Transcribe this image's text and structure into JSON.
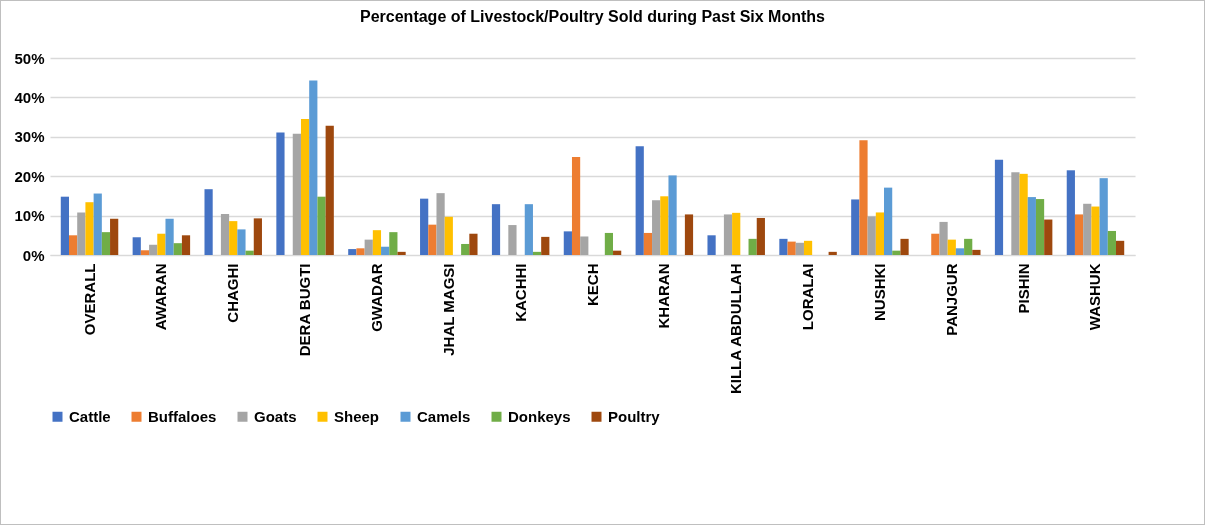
{
  "chart_data": {
    "type": "bar",
    "title": "Percentage of Livestock/Poultry Sold during Past Six Months",
    "categories": [
      "OVERALL",
      "AWARAN",
      "CHAGHI",
      "DERA BUGTI",
      "GWADAR",
      "JHAL MAGSI",
      "KACHHI",
      "KECH",
      "KHARAN",
      "KILLA ABDULLAH",
      "LORALAI",
      "NUSHKI",
      "PANJGUR",
      "PISHIN",
      "WASHUK"
    ],
    "series": [
      {
        "name": "Cattle",
        "color": "#4472c4",
        "values": [
          14.8,
          4.5,
          16.7,
          31.1,
          1.5,
          14.3,
          12.9,
          6.0,
          27.6,
          5.0,
          4.1,
          14.1,
          null,
          24.2,
          21.5
        ]
      },
      {
        "name": "Buffaloes",
        "color": "#ed7d31",
        "values": [
          5.0,
          1.2,
          null,
          null,
          1.7,
          7.7,
          null,
          24.9,
          5.6,
          null,
          3.4,
          29.1,
          5.4,
          null,
          10.3
        ]
      },
      {
        "name": "Goats",
        "color": "#a5a5a5",
        "values": [
          10.8,
          2.6,
          10.4,
          30.8,
          3.9,
          15.7,
          7.6,
          4.7,
          13.9,
          10.3,
          3.1,
          9.8,
          8.4,
          21.0,
          13.0
        ]
      },
      {
        "name": "Sheep",
        "color": "#ffc000",
        "values": [
          13.4,
          5.4,
          8.6,
          34.5,
          6.3,
          9.7,
          null,
          null,
          14.9,
          10.7,
          3.6,
          10.8,
          3.9,
          20.6,
          12.3
        ]
      },
      {
        "name": "Camels",
        "color": "#5b9bd5",
        "values": [
          15.6,
          9.2,
          6.5,
          44.3,
          2.1,
          null,
          12.9,
          null,
          20.2,
          null,
          null,
          17.1,
          1.7,
          14.7,
          19.5
        ]
      },
      {
        "name": "Donkeys",
        "color": "#70ad47",
        "values": [
          5.8,
          3.0,
          1.1,
          14.8,
          5.8,
          2.8,
          0.8,
          5.6,
          null,
          4.1,
          null,
          1.1,
          4.1,
          14.2,
          6.1
        ]
      },
      {
        "name": "Poultry",
        "color": "#9e480e",
        "values": [
          9.2,
          5.0,
          9.3,
          32.8,
          0.8,
          5.4,
          4.6,
          1.1,
          10.3,
          9.4,
          0.8,
          4.1,
          1.3,
          9.0,
          3.6
        ]
      }
    ],
    "ylim": [
      0,
      50
    ],
    "yticks": [
      {
        "value": 0,
        "label": "0%"
      },
      {
        "value": 10,
        "label": "10%"
      },
      {
        "value": 20,
        "label": "20%"
      },
      {
        "value": 30,
        "label": "30%"
      },
      {
        "value": 40,
        "label": "40%"
      },
      {
        "value": 50,
        "label": "50%"
      }
    ],
    "grid": "y",
    "legend": "bottom"
  }
}
